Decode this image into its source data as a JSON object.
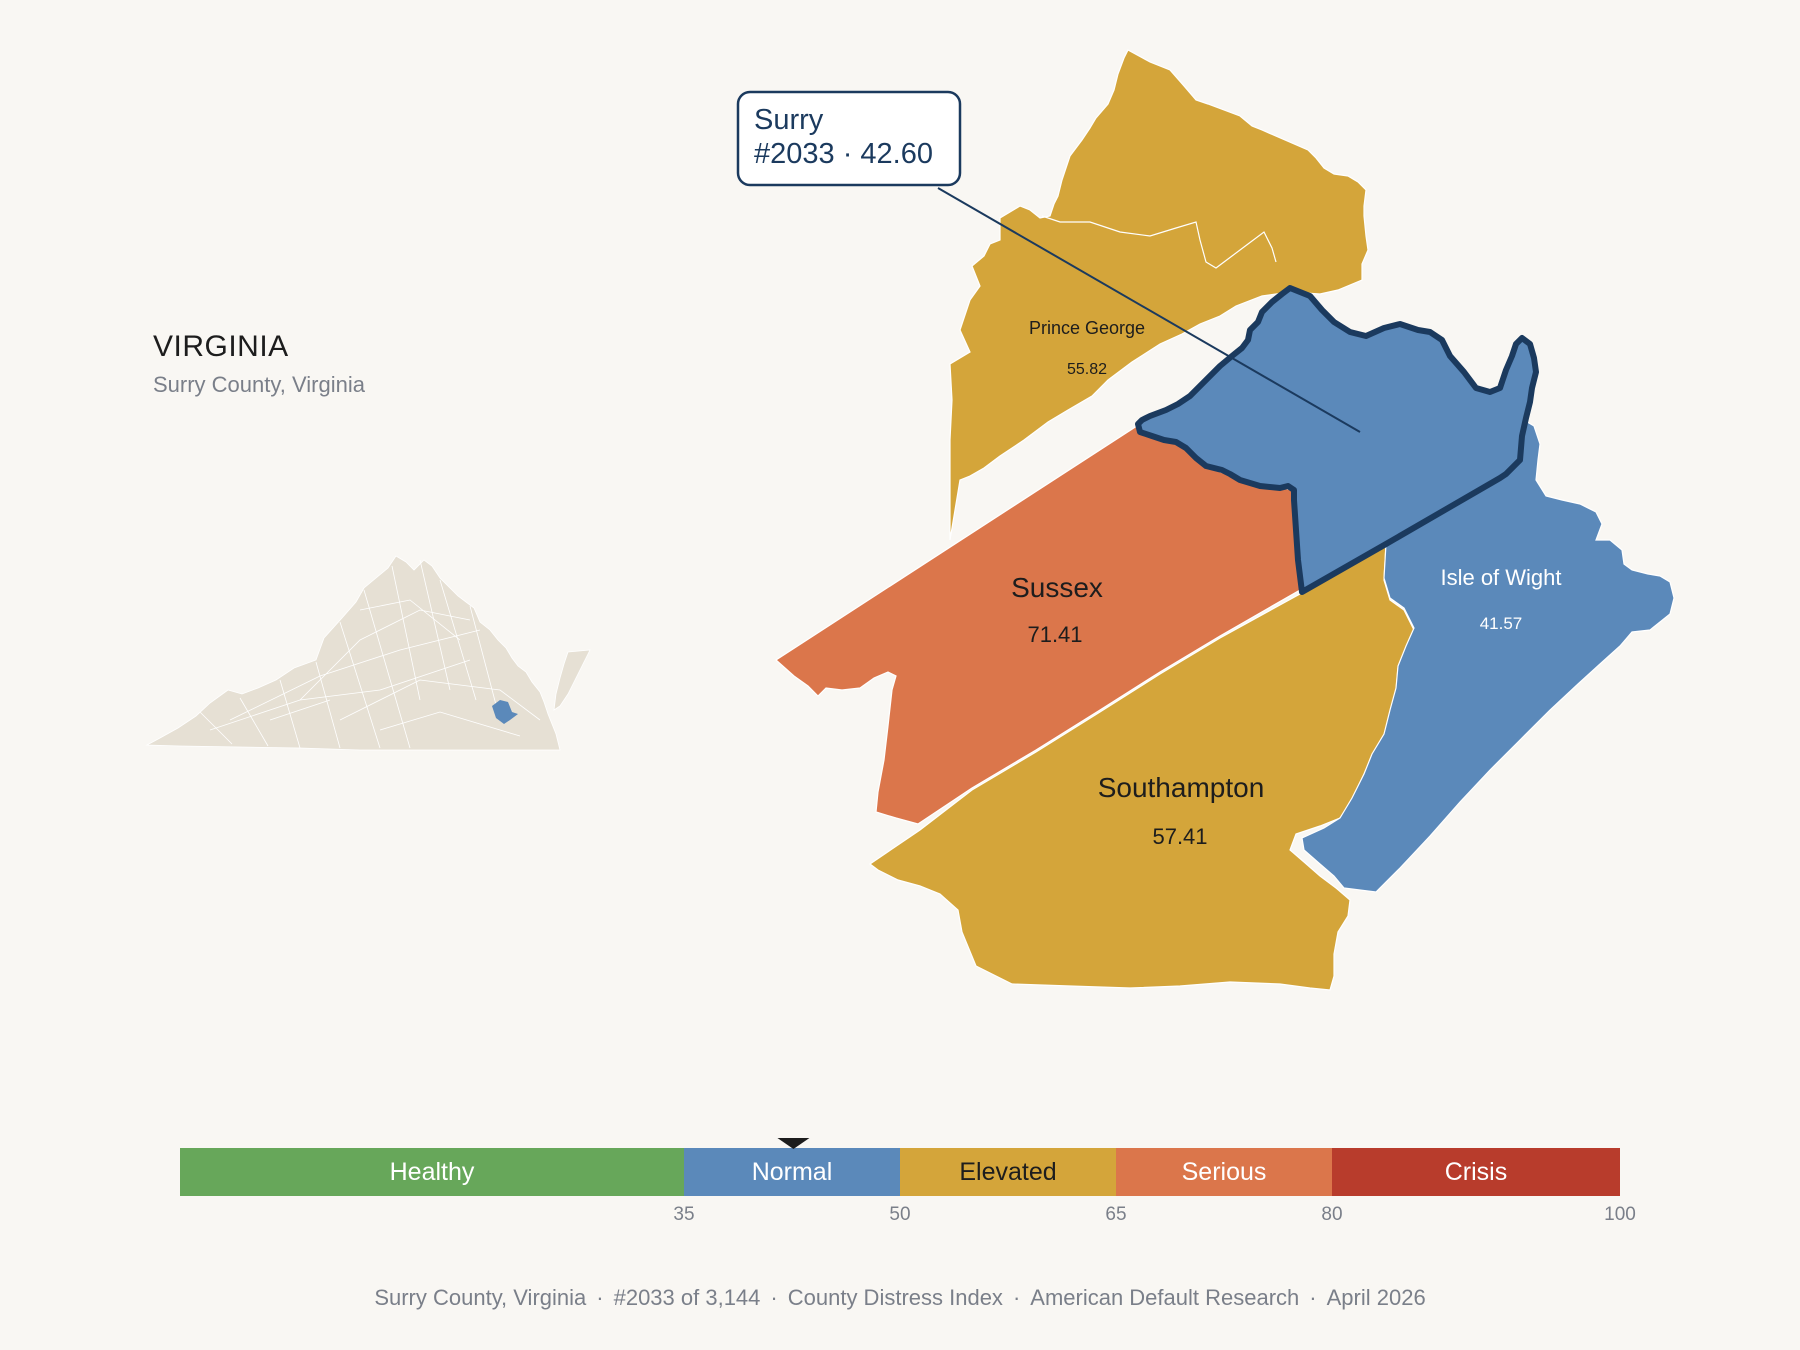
{
  "header": {
    "state": "VIRGINIA",
    "subtitle": "Surry County, Virginia"
  },
  "callout": {
    "line1": "Surry",
    "line2": "#2033 · 42.60"
  },
  "counties": [
    {
      "id": "prince-george",
      "name": "Prince George",
      "value": "55.82",
      "color": "#d4a53a",
      "text_color": "#1d1d1d"
    },
    {
      "id": "sussex",
      "name": "Sussex",
      "value": "71.41",
      "color": "#db764b",
      "text_color": "#1d1d1d"
    },
    {
      "id": "southampton",
      "name": "Southampton",
      "value": "57.41",
      "color": "#d4a53a",
      "text_color": "#1d1d1d"
    },
    {
      "id": "isle-of-wight",
      "name": "Isle of Wight",
      "value": "41.57",
      "color": "#5b89ba",
      "text_color": "#ffffff"
    },
    {
      "id": "surry",
      "name": "Surry",
      "value": "42.60",
      "color": "#5b89ba",
      "highlighted": true
    }
  ],
  "legend": {
    "bands": [
      {
        "label": "Healthy",
        "from": 0,
        "to": 35,
        "color": "#67a75a",
        "text_color": "#ffffff"
      },
      {
        "label": "Normal",
        "from": 35,
        "to": 50,
        "color": "#5b89ba",
        "text_color": "#ffffff"
      },
      {
        "label": "Elevated",
        "from": 50,
        "to": 65,
        "color": "#d4a53a",
        "text_color": "#1d1d1d"
      },
      {
        "label": "Serious",
        "from": 65,
        "to": 80,
        "color": "#db764b",
        "text_color": "#ffffff"
      },
      {
        "label": "Crisis",
        "from": 80,
        "to": 100,
        "color": "#b83c2c",
        "text_color": "#ffffff"
      }
    ],
    "ticks": [
      "35",
      "50",
      "65",
      "80",
      "100"
    ],
    "tick_values": [
      35,
      50,
      65,
      80,
      100
    ],
    "marker_value": 42.6
  },
  "footer": {
    "county": "Surry County, Virginia",
    "rank": "#2033 of 3,144",
    "index": "County Distress Index",
    "source": "American Default Research",
    "date": "April 2026"
  }
}
